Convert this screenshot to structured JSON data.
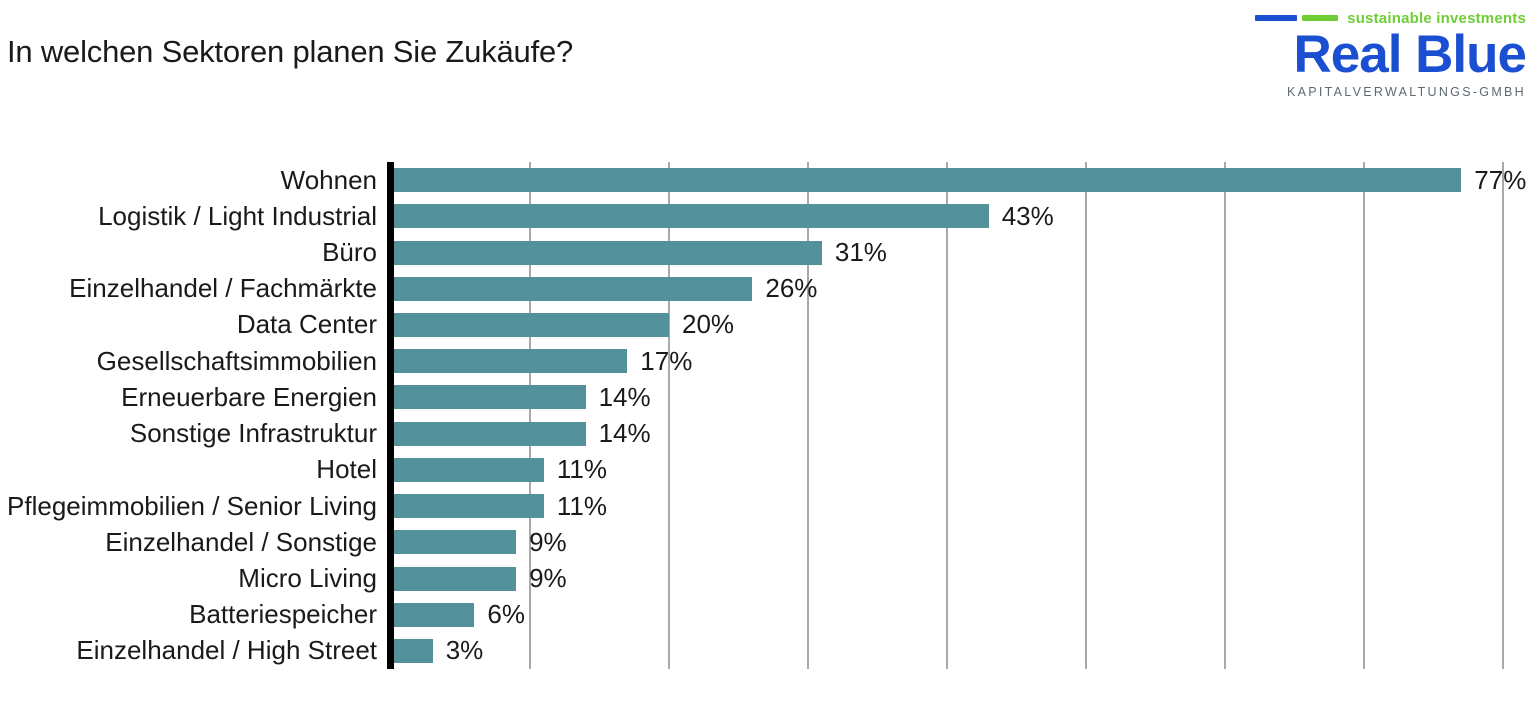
{
  "title": "In welchen Sektoren planen Sie Zukäufe?",
  "logo": {
    "tagline": "sustainable investments",
    "brand": "Real Blue",
    "subtitle": "KAPITALVERWALTUNGS-GMBH",
    "colors": {
      "blue": "#1a4fd1",
      "green": "#6fce35",
      "gray": "#5d6973"
    }
  },
  "chart_data": {
    "type": "bar",
    "orientation": "horizontal",
    "title": "In welchen Sektoren planen Sie Zukäufe?",
    "categories": [
      "Wohnen",
      "Logistik / Light Industrial",
      "Büro",
      "Einzelhandel / Fachmärkte",
      "Data Center",
      "Gesellschaftsimmobilien",
      "Erneuerbare Energien",
      "Sonstige Infrastruktur",
      "Hotel",
      "Pflegeimmobilien / Senior Living",
      "Einzelhandel / Sonstige",
      "Micro Living",
      "Batteriespeicher",
      "Einzelhandel / High Street"
    ],
    "values": [
      77,
      43,
      31,
      26,
      20,
      17,
      14,
      14,
      11,
      11,
      9,
      9,
      6,
      3
    ],
    "value_labels": [
      "77%",
      "43%",
      "31%",
      "26%",
      "20%",
      "17%",
      "14%",
      "14%",
      "11%",
      "11%",
      "9%",
      "9%",
      "6%",
      "3%"
    ],
    "xlabel": "",
    "ylabel": "",
    "xlim": [
      0,
      80
    ],
    "gridline_interval": 10,
    "grid": "vertical",
    "legend": "none",
    "bar_color": "#54919b",
    "gridline_color": "#a9a9a9",
    "axis_color": "#000000"
  }
}
